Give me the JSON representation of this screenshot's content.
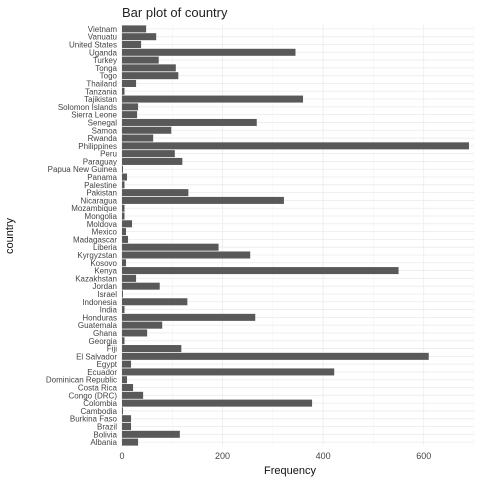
{
  "chart_data": {
    "type": "bar",
    "orientation": "horizontal",
    "title": "Bar plot of country",
    "xlabel": "Frequency",
    "ylabel": "country",
    "xlim": [
      0,
      700
    ],
    "xticks": [
      0,
      200,
      400,
      600
    ],
    "grid": true,
    "legend": "none",
    "bar_color": "#595959",
    "categories": [
      "Albania",
      "Bolivia",
      "Brazil",
      "Burkina Faso",
      "Cambodia",
      "Colombia",
      "Congo (DRC)",
      "Costa Rica",
      "Dominican Republic",
      "Ecuador",
      "Egypt",
      "El Salvador",
      "Fiji",
      "Georgia",
      "Ghana",
      "Guatemala",
      "Honduras",
      "India",
      "Indonesia",
      "Israel",
      "Jordan",
      "Kazakhstan",
      "Kenya",
      "Kosovo",
      "Kyrgyzstan",
      "Liberia",
      "Madagascar",
      "Mexico",
      "Moldova",
      "Mongolia",
      "Mozambique",
      "Nicaragua",
      "Pakistan",
      "Palestine",
      "Panama",
      "Papua New Guinea",
      "Paraguay",
      "Peru",
      "Philippines",
      "Rwanda",
      "Samoa",
      "Senegal",
      "Sierra Leone",
      "Solomon Islands",
      "Tajikistan",
      "Tanzania",
      "Thailand",
      "Togo",
      "Tonga",
      "Turkey",
      "Uganda",
      "United States",
      "Vanuatu",
      "Vietnam"
    ],
    "values": [
      32,
      115,
      18,
      18,
      2,
      378,
      42,
      22,
      10,
      422,
      18,
      610,
      118,
      5,
      50,
      80,
      265,
      5,
      130,
      2,
      75,
      28,
      550,
      8,
      255,
      192,
      12,
      8,
      20,
      5,
      5,
      322,
      132,
      5,
      10,
      2,
      120,
      105,
      690,
      62,
      98,
      268,
      30,
      32,
      360,
      5,
      28,
      112,
      107,
      73,
      345,
      38,
      68,
      48
    ]
  }
}
